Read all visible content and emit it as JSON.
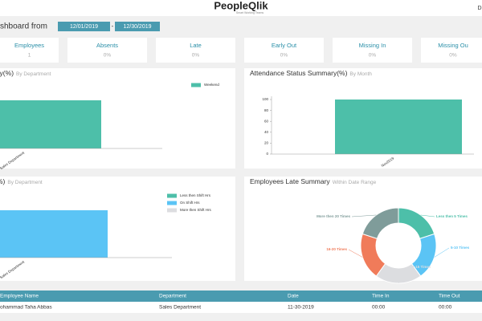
{
  "header": {
    "logo": "PeopleQlik",
    "tagline": "Smart Working Teams",
    "user": "D"
  },
  "filter": {
    "label": "shboard from",
    "from": "12/01/2019",
    "separator": "-",
    "to": "12/30/2019"
  },
  "stats": [
    {
      "label": "Employees",
      "value": "1"
    },
    {
      "label": "Absents",
      "value": "0%"
    },
    {
      "label": "Late",
      "value": "0%"
    },
    {
      "label": "Early Out",
      "value": "0%"
    },
    {
      "label": "Missing In",
      "value": "0%"
    },
    {
      "label": "Missing Ou",
      "value": "0%"
    }
  ],
  "panels": [
    {
      "title": "ary(%)",
      "subtitle": "By Department",
      "chart": {
        "type": "bar",
        "categories": [
          "Sales Department"
        ],
        "ylim": [
          0,
          100
        ],
        "series": [
          {
            "name": "Weekend",
            "color": "#4dbfa9",
            "values": [
              100
            ]
          }
        ]
      }
    },
    {
      "title": "Attendance Status Summary(%)",
      "subtitle": "By Month",
      "chart": {
        "type": "bar",
        "categories": [
          "Nov2019"
        ],
        "ylim": [
          0,
          100
        ],
        "yticks": [
          0,
          20,
          40,
          60,
          80,
          100
        ],
        "series": [
          {
            "color": "#4dbfa9",
            "values": [
              100
            ]
          }
        ]
      }
    },
    {
      "title": "%)",
      "subtitle": "By Department",
      "chart": {
        "type": "bar",
        "stacked": true,
        "categories": [
          "Sales Department"
        ],
        "ylim": [
          0,
          100
        ],
        "series": [
          {
            "name": "Less then Shift Hrs",
            "color": "#4dbfa9",
            "values": [
              0
            ]
          },
          {
            "name": "On Shift Hrs",
            "color": "#5bc4f5",
            "values": [
              100
            ]
          },
          {
            "name": "More then Shift Hrs",
            "color": "#dcdde0",
            "values": [
              0
            ]
          }
        ]
      }
    },
    {
      "title": "Employees Late Summary",
      "subtitle": "Within Date Range",
      "chart": {
        "type": "pie",
        "categories": [
          "Less then 5 Times",
          "5-10 Times",
          "11-15 Times",
          "16-20 Times",
          "More then 20 Times"
        ],
        "values": [
          20,
          20,
          20,
          20,
          20
        ],
        "colors": [
          "#4dbfa9",
          "#5bc4f5",
          "#dcdde0",
          "#f07b5a",
          "#7f9c9a"
        ]
      }
    }
  ],
  "table": {
    "columns": [
      "Employee Name",
      "Department",
      "Date",
      "Time In",
      "Time Out"
    ],
    "rows": [
      [
        "ohammad Taha Abbas",
        "Sales Department",
        "11-30-2019",
        "00:00",
        "00:00"
      ]
    ]
  }
}
